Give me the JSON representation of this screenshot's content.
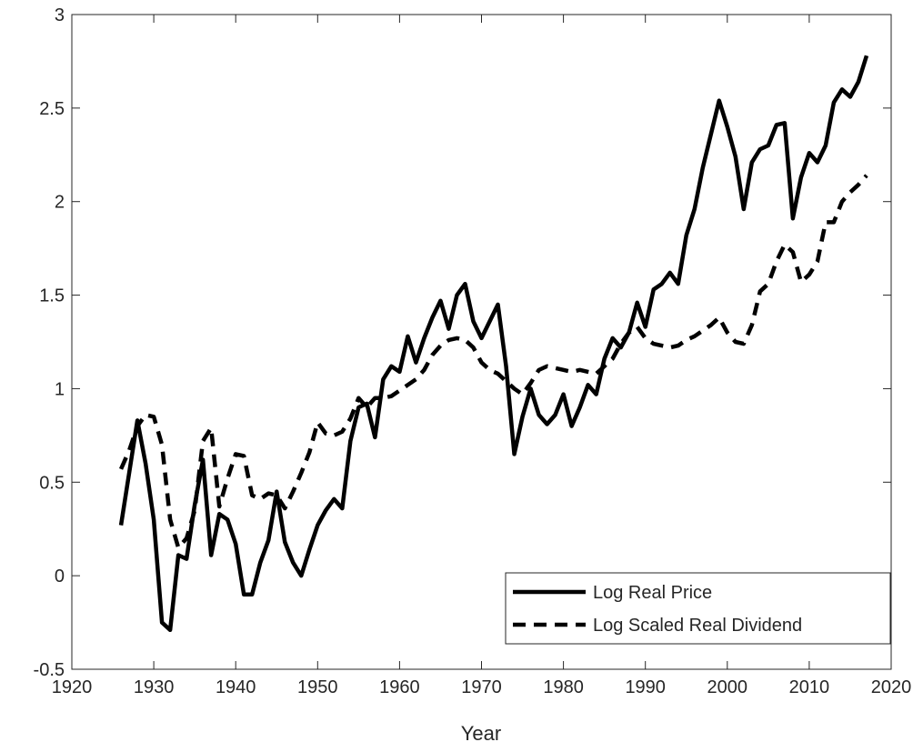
{
  "chart_data": {
    "type": "line",
    "xlabel": "Year",
    "x": [
      1926,
      1927,
      1928,
      1929,
      1930,
      1931,
      1932,
      1933,
      1934,
      1935,
      1936,
      1937,
      1938,
      1939,
      1940,
      1941,
      1942,
      1943,
      1944,
      1945,
      1946,
      1947,
      1948,
      1949,
      1950,
      1951,
      1952,
      1953,
      1954,
      1955,
      1956,
      1957,
      1958,
      1959,
      1960,
      1961,
      1962,
      1963,
      1964,
      1965,
      1966,
      1967,
      1968,
      1969,
      1970,
      1971,
      1972,
      1973,
      1974,
      1975,
      1976,
      1977,
      1978,
      1979,
      1980,
      1981,
      1982,
      1983,
      1984,
      1985,
      1986,
      1987,
      1988,
      1989,
      1990,
      1991,
      1992,
      1993,
      1994,
      1995,
      1996,
      1997,
      1998,
      1999,
      2000,
      2001,
      2002,
      2003,
      2004,
      2005,
      2006,
      2007,
      2008,
      2009,
      2010,
      2011,
      2012,
      2013,
      2014,
      2015,
      2016,
      2017
    ],
    "series": [
      {
        "name": "Log Real Price",
        "color": "#000000",
        "line_style": "solid",
        "values": [
          0.27,
          0.55,
          0.83,
          0.6,
          0.3,
          -0.25,
          -0.29,
          0.11,
          0.09,
          0.38,
          0.62,
          0.11,
          0.33,
          0.3,
          0.17,
          -0.1,
          -0.1,
          0.07,
          0.19,
          0.45,
          0.18,
          0.07,
          0.0,
          0.14,
          0.27,
          0.35,
          0.41,
          0.36,
          0.72,
          0.9,
          0.92,
          0.74,
          1.05,
          1.12,
          1.09,
          1.28,
          1.14,
          1.27,
          1.38,
          1.47,
          1.32,
          1.5,
          1.56,
          1.36,
          1.27,
          1.36,
          1.45,
          1.12,
          0.65,
          0.85,
          1.0,
          0.86,
          0.81,
          0.86,
          0.97,
          0.8,
          0.9,
          1.02,
          0.97,
          1.16,
          1.27,
          1.22,
          1.3,
          1.46,
          1.33,
          1.53,
          1.56,
          1.62,
          1.56,
          1.82,
          1.96,
          2.18,
          2.36,
          2.54,
          2.4,
          2.24,
          1.96,
          2.21,
          2.28,
          2.3,
          2.41,
          2.42,
          1.91,
          2.13,
          2.26,
          2.21,
          2.3,
          2.53,
          2.6,
          2.56,
          2.64,
          2.78
        ]
      },
      {
        "name": "Log Scaled Real Dividend",
        "color": "#000000",
        "line_style": "dashed",
        "values": [
          0.57,
          0.67,
          0.8,
          0.86,
          0.85,
          0.7,
          0.3,
          0.15,
          0.2,
          0.35,
          0.72,
          0.79,
          0.37,
          0.52,
          0.65,
          0.64,
          0.43,
          0.41,
          0.44,
          0.43,
          0.36,
          0.45,
          0.55,
          0.66,
          0.82,
          0.76,
          0.75,
          0.77,
          0.84,
          0.95,
          0.9,
          0.95,
          0.95,
          0.96,
          0.99,
          1.02,
          1.05,
          1.1,
          1.18,
          1.23,
          1.26,
          1.27,
          1.26,
          1.22,
          1.14,
          1.1,
          1.08,
          1.04,
          1.0,
          0.97,
          1.03,
          1.1,
          1.12,
          1.11,
          1.1,
          1.09,
          1.1,
          1.09,
          1.08,
          1.12,
          1.16,
          1.24,
          1.3,
          1.33,
          1.27,
          1.24,
          1.23,
          1.22,
          1.23,
          1.26,
          1.28,
          1.31,
          1.34,
          1.38,
          1.3,
          1.25,
          1.24,
          1.34,
          1.52,
          1.56,
          1.68,
          1.77,
          1.73,
          1.57,
          1.61,
          1.68,
          1.89,
          1.89,
          2.0,
          2.05,
          2.09,
          2.14
        ]
      }
    ],
    "xlim": [
      1920,
      2020
    ],
    "xticks": [
      1920,
      1930,
      1940,
      1950,
      1960,
      1970,
      1980,
      1990,
      2000,
      2010,
      2020
    ],
    "ylim": [
      -0.5,
      3
    ],
    "yticks": [
      -0.5,
      0,
      0.5,
      1,
      1.5,
      2,
      2.5,
      3
    ],
    "legend": "lower right"
  }
}
